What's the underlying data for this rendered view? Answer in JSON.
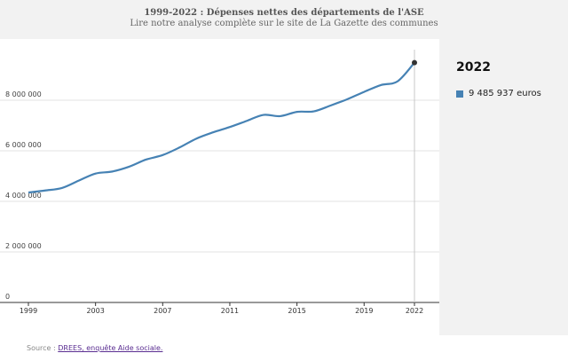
{
  "header": {
    "title": "1999-2022 : Dépenses nettes des départements de l'ASE",
    "subtitle": "Lire notre analyse complète sur le site de La Gazette des communes"
  },
  "tooltip": {
    "year": "2022",
    "value": "9 485 937 euros"
  },
  "source": {
    "prefix": "Source : ",
    "link_text": "DREES, enquête Aide sociale."
  },
  "chart_data": {
    "type": "line",
    "title": "1999-2022 : Dépenses nettes des départements de l'ASE",
    "x": [
      1999,
      2000,
      2001,
      2002,
      2003,
      2004,
      2005,
      2006,
      2007,
      2008,
      2009,
      2010,
      2011,
      2012,
      2013,
      2014,
      2015,
      2016,
      2017,
      2018,
      2019,
      2020,
      2021,
      2022
    ],
    "series": [
      {
        "values": [
          4350000,
          4430000,
          4530000,
          4820000,
          5100000,
          5180000,
          5370000,
          5650000,
          5830000,
          6130000,
          6480000,
          6730000,
          6940000,
          7180000,
          7420000,
          7370000,
          7540000,
          7560000,
          7790000,
          8040000,
          8330000,
          8600000,
          8750000,
          9485937
        ],
        "color": "#4682b4"
      }
    ],
    "xticks": [
      "1999",
      "2003",
      "2007",
      "2011",
      "2015",
      "2019",
      "2022"
    ],
    "yticks": [
      "0",
      "2 000 000",
      "4 000 000",
      "6 000 000",
      "8 000 000"
    ],
    "ytick_values": [
      0,
      2000000,
      4000000,
      6000000,
      8000000
    ],
    "ylim": [
      0,
      10000000
    ],
    "xlim": [
      1999,
      2022
    ],
    "grid": true,
    "highlight_year": 2022
  }
}
